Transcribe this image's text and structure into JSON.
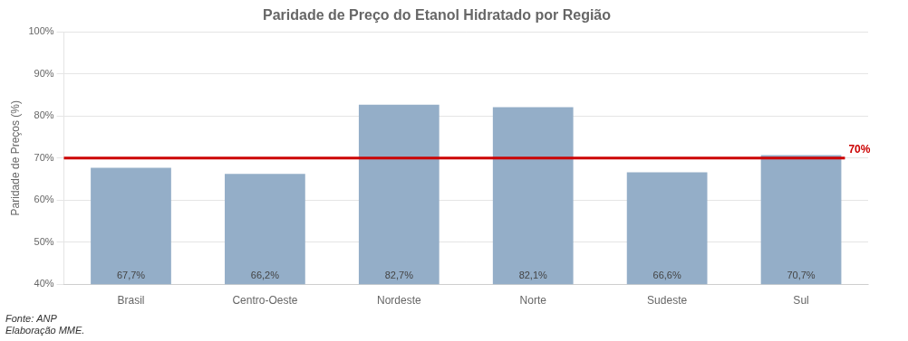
{
  "chart_data": {
    "type": "bar",
    "title": "Paridade de Preço do Etanol Hidratado por Região",
    "categories": [
      "Brasil",
      "Centro-Oeste",
      "Nordeste",
      "Norte",
      "Sudeste",
      "Sul"
    ],
    "values": [
      67.7,
      66.2,
      82.7,
      82.1,
      66.6,
      70.7
    ],
    "value_labels": [
      "67,7%",
      "66,2%",
      "82,7%",
      "82,1%",
      "66,6%",
      "70,7%"
    ],
    "data_labels": true,
    "color": "#94aec8",
    "ylabel": "Paridade de Preços (%)",
    "ylim": [
      40,
      100
    ],
    "yticks": [
      {
        "value": 40,
        "label": "40%"
      },
      {
        "value": 50,
        "label": "50%"
      },
      {
        "value": 60,
        "label": "60%"
      },
      {
        "value": 70,
        "label": "70%"
      },
      {
        "value": 80,
        "label": "80%"
      },
      {
        "value": 90,
        "label": "90%"
      },
      {
        "value": 100,
        "label": "100%"
      }
    ],
    "grid": true,
    "annotations": [
      {
        "type": "hline",
        "y": 70,
        "text": "70%",
        "color": "#cc0000"
      }
    ],
    "footnote": "Fonte: ANP\nElaboração MME."
  }
}
